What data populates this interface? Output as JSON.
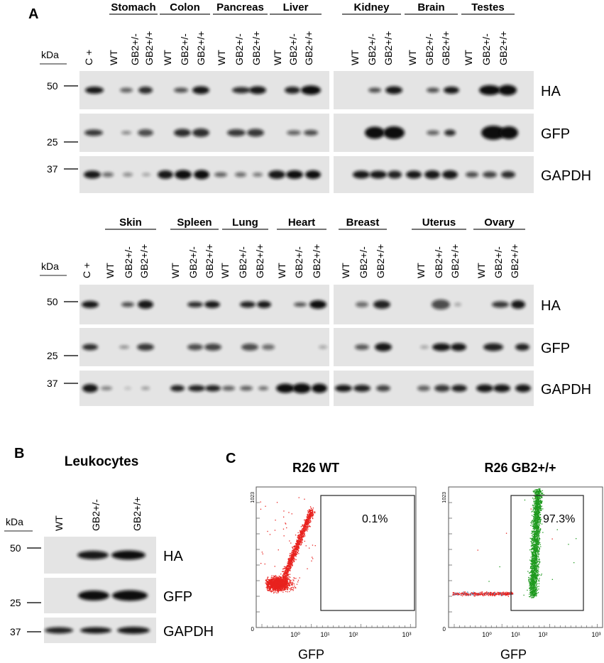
{
  "panelA": {
    "label": "A",
    "kda": "kDa",
    "markers": [
      "50",
      "25",
      "37"
    ],
    "bands": [
      "HA",
      "GFP",
      "GAPDH"
    ],
    "top_tissues": [
      "Stomach",
      "Colon",
      "Pancreas",
      "Liver",
      "Kidney",
      "Brain",
      "Testes"
    ],
    "bottom_tissues": [
      "Skin",
      "Spleen",
      "Lung",
      "Heart",
      "Breast",
      "Uterus",
      "Ovary"
    ],
    "control_lane": "C +",
    "genotypes": [
      "WT",
      "GB2+/-",
      "GB2+/+"
    ]
  },
  "panelB": {
    "label": "B",
    "title": "Leukocytes",
    "kda": "kDa",
    "markers": [
      "50",
      "25",
      "37"
    ],
    "bands": [
      "HA",
      "GFP",
      "GAPDH"
    ],
    "lanes": [
      "WT",
      "GB2+/-",
      "GB2+/+"
    ]
  },
  "panelC": {
    "label": "C",
    "plots": [
      {
        "title": "R26 WT",
        "percent": "0.1%",
        "xlabel": "GFP",
        "ymax": "1023",
        "yzero": "0",
        "xticks": [
          "10⁰",
          "10¹",
          "10²",
          "10³"
        ]
      },
      {
        "title": "R26 GB2+/+",
        "percent": "97.3%",
        "xlabel": "GFP",
        "ymax": "1023",
        "yzero": "0",
        "xticks": [
          "10⁰",
          "10¹",
          "10²",
          "10³"
        ]
      }
    ]
  },
  "colors": {
    "band": "#111111",
    "blot_bg": "#e4e4e4",
    "neg": "#e8221e",
    "pos": "#1e9a1e"
  }
}
